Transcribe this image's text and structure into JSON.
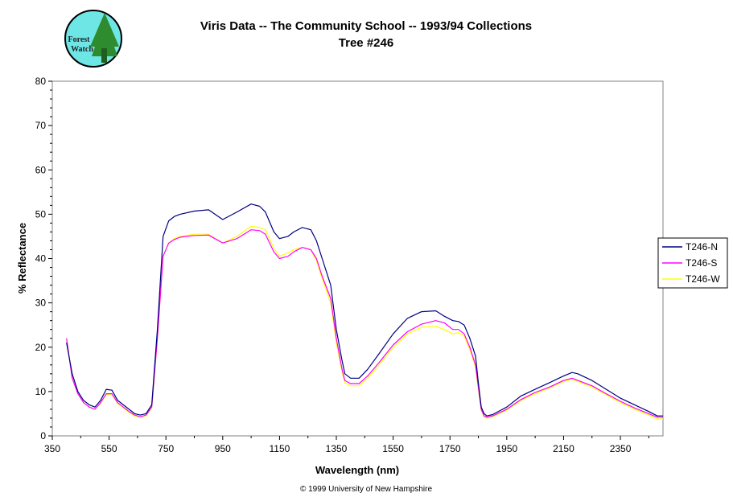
{
  "logo": {
    "text": [
      "Forest",
      "Watch"
    ],
    "colors": {
      "ring": "#000000",
      "fill": "#6ee6e6",
      "trees": "#2e8b2e"
    }
  },
  "footer": "© 1999 University of New Hampshire",
  "chart_data": {
    "type": "line",
    "title": "Viris Data -- The Community School -- 1993/94 Collections",
    "subtitle": "Tree #246",
    "xlabel": "Wavelength (nm)",
    "ylabel": "% Reflectance",
    "xlim": [
      350,
      2500
    ],
    "ylim": [
      0,
      80
    ],
    "xticks": [
      350,
      550,
      750,
      950,
      1150,
      1350,
      1550,
      1750,
      1950,
      2150,
      2350
    ],
    "yticks": [
      0,
      10,
      20,
      30,
      40,
      50,
      60,
      70,
      80
    ],
    "grid": false,
    "legend_position": "right",
    "x": [
      400,
      420,
      440,
      460,
      480,
      500,
      520,
      540,
      560,
      580,
      600,
      620,
      640,
      660,
      680,
      700,
      720,
      740,
      760,
      780,
      800,
      850,
      900,
      950,
      1000,
      1050,
      1080,
      1100,
      1130,
      1150,
      1180,
      1200,
      1230,
      1260,
      1280,
      1300,
      1330,
      1350,
      1370,
      1380,
      1400,
      1430,
      1460,
      1500,
      1550,
      1600,
      1650,
      1700,
      1730,
      1760,
      1780,
      1800,
      1820,
      1840,
      1850,
      1860,
      1870,
      1880,
      1900,
      1950,
      2000,
      2050,
      2100,
      2150,
      2180,
      2200,
      2250,
      2300,
      2350,
      2400,
      2450,
      2480,
      2500
    ],
    "series": [
      {
        "name": "T246-N",
        "color": "#000080",
        "values": [
          21,
          14,
          10,
          8,
          7,
          6.5,
          8,
          10.5,
          10.3,
          8,
          7,
          6,
          5,
          4.7,
          5,
          7,
          24,
          45,
          48.5,
          49.5,
          50,
          50.7,
          51,
          48.8,
          50.5,
          52.3,
          51.8,
          50.5,
          46,
          44.5,
          45,
          46,
          47,
          46.5,
          44,
          40,
          34,
          24,
          17,
          14,
          13,
          13,
          15,
          18.5,
          23,
          26.5,
          28,
          28.2,
          27,
          26,
          25.8,
          25,
          22,
          18,
          12,
          6.5,
          5,
          4.5,
          4.8,
          6.5,
          9,
          10.5,
          12,
          13.5,
          14.3,
          14,
          12.5,
          10.5,
          8.5,
          7,
          5.5,
          4.5,
          4.5
        ]
      },
      {
        "name": "T246-S",
        "color": "#ff00ff",
        "values": [
          22,
          13,
          9.5,
          7.5,
          6.5,
          6,
          7.5,
          9.5,
          9.5,
          7.5,
          6.5,
          5.5,
          4.7,
          4.3,
          4.7,
          6.5,
          22,
          40.5,
          43.5,
          44.3,
          44.8,
          45.2,
          45.3,
          43.5,
          44.5,
          46.5,
          46.3,
          45.5,
          41.5,
          40,
          40.5,
          41.5,
          42.5,
          42,
          40,
          36,
          31,
          22,
          15,
          12.5,
          11.8,
          11.8,
          13.5,
          16.5,
          20.5,
          23.5,
          25.2,
          26,
          25.5,
          24,
          24,
          23,
          20,
          16,
          11,
          6,
          4.5,
          4.2,
          4.5,
          6,
          8.2,
          9.8,
          11,
          12.5,
          13,
          12.5,
          11.3,
          9.5,
          7.8,
          6.3,
          5,
          4.2,
          4.2
        ]
      },
      {
        "name": "T246-W",
        "color": "#ffff00",
        "values": [
          22,
          13,
          9.5,
          7.5,
          6.5,
          6,
          7.3,
          9.3,
          9.3,
          7.3,
          6.3,
          5.3,
          4.5,
          4.2,
          4.5,
          6.3,
          22,
          40.5,
          43.5,
          44.5,
          45,
          45.5,
          45.5,
          43.5,
          45,
          47.3,
          47,
          46.5,
          42.3,
          40.5,
          41.3,
          42,
          42.5,
          42,
          39.5,
          35.5,
          30,
          21,
          14.5,
          12,
          11.3,
          11.3,
          13,
          16,
          20,
          23,
          24.5,
          24.7,
          24,
          23,
          23.3,
          22.5,
          19.5,
          15.5,
          10.5,
          5.8,
          4.3,
          4,
          4.3,
          5.8,
          8,
          9.5,
          10.8,
          12.2,
          12.8,
          12.3,
          11,
          9.3,
          7.5,
          6,
          4.7,
          3.8,
          3.8
        ]
      }
    ]
  }
}
